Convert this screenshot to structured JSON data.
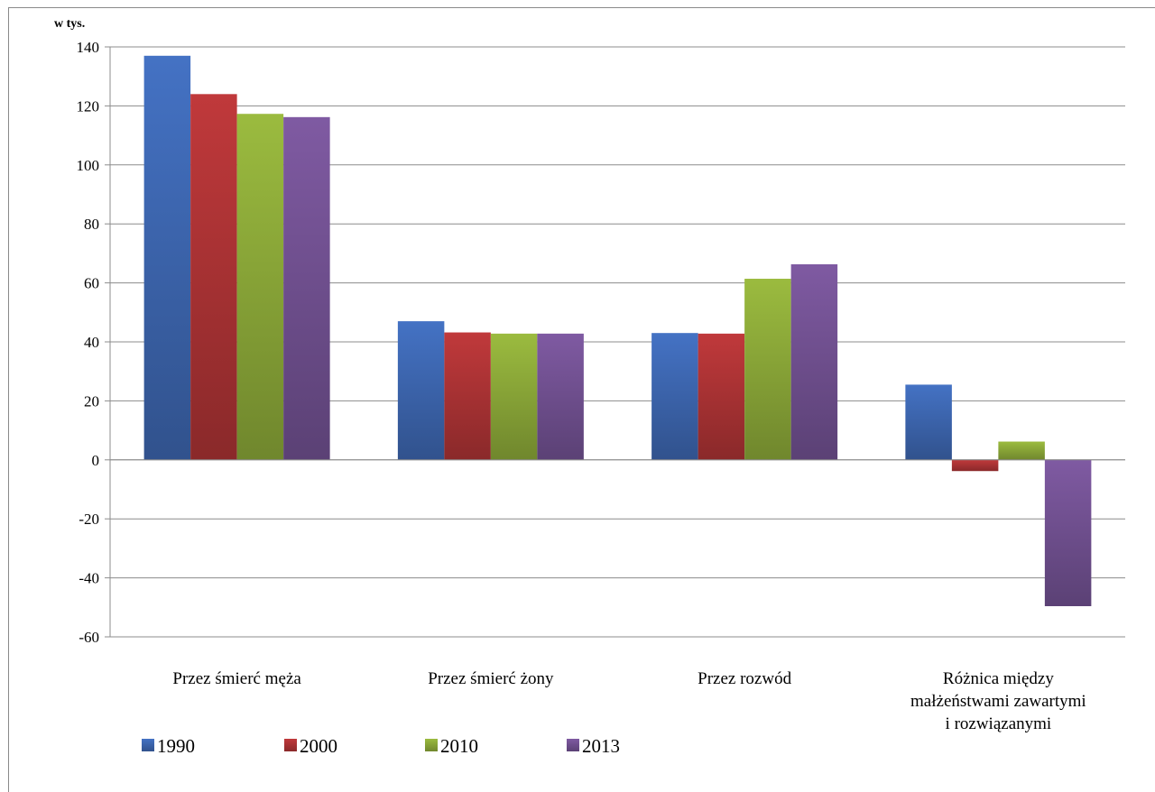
{
  "chart_data": {
    "type": "bar",
    "unit_label": "w tys.",
    "categories": [
      [
        "Przez śmierć męża"
      ],
      [
        "Przez śmierć żony"
      ],
      [
        "Przez rozwód"
      ],
      [
        "Różnica między",
        "małżeństwami zawartymi",
        "i rozwiązanymi"
      ]
    ],
    "series": [
      {
        "name": "1990",
        "color": "#4472c4",
        "values": [
          137,
          47,
          43,
          25.5
        ]
      },
      {
        "name": "2000",
        "color": "#c0393b",
        "values": [
          124,
          43.2,
          42.8,
          -3.8
        ]
      },
      {
        "name": "2010",
        "color": "#9bbb3f",
        "values": [
          117.3,
          42.8,
          61.4,
          6.2
        ]
      },
      {
        "name": "2013",
        "color": "#7f5aa2",
        "values": [
          116.2,
          42.8,
          66.3,
          -49.6
        ]
      }
    ],
    "ylim": [
      -60,
      140
    ],
    "yticks": [
      140,
      120,
      100,
      80,
      60,
      40,
      20,
      0,
      -20,
      -40,
      -60
    ],
    "grid": true,
    "legend_position": "bottom-left"
  }
}
